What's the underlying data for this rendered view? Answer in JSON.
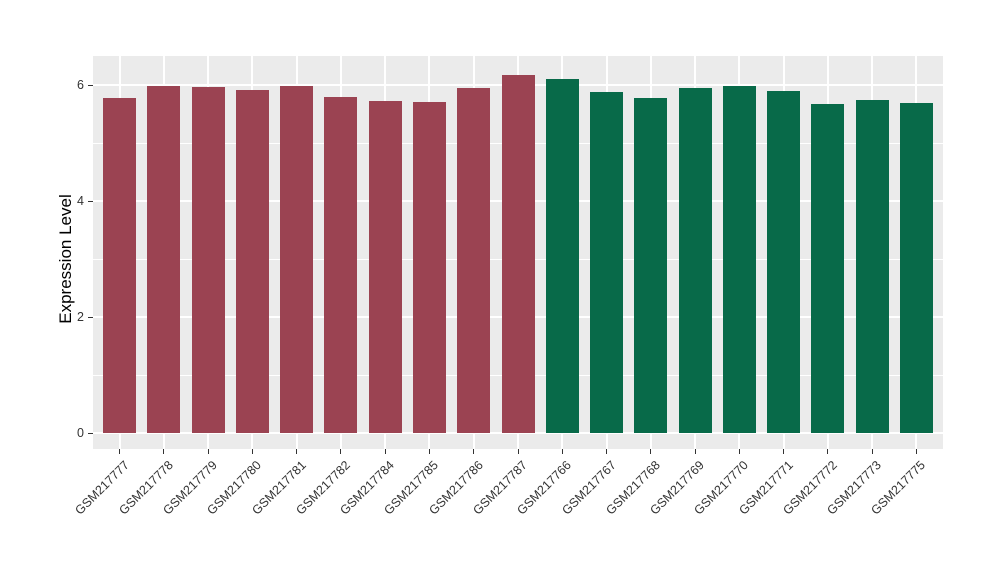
{
  "figure": {
    "background": "#ffffff",
    "title": ""
  },
  "style": {
    "panel_bg": "#EBEBEB",
    "grid_major_color": "#FFFFFF",
    "grid_minor_color": "#FFFFFF",
    "tick_text_color": "#333333",
    "axis_title_color": "#000000"
  },
  "chart_data": {
    "type": "bar",
    "title": "",
    "xlabel": "",
    "ylabel": "Expression Level",
    "ylim": [
      0,
      6.5
    ],
    "yticks": [
      0,
      2,
      4,
      6
    ],
    "grid": "white major gridlines at y=0,2,4,6 and minor at y=1,3,5 on gray panel; white vertical gridline at each category",
    "legend": "none",
    "x_tick_angle_deg": 45,
    "group_colors": {
      "group1": "#9B4352",
      "group2": "#086A49"
    },
    "bars": [
      {
        "label": "GSM217777",
        "value": 5.77,
        "group": "group1"
      },
      {
        "label": "GSM217778",
        "value": 5.98,
        "group": "group1"
      },
      {
        "label": "GSM217779",
        "value": 5.96,
        "group": "group1"
      },
      {
        "label": "GSM217780",
        "value": 5.91,
        "group": "group1"
      },
      {
        "label": "GSM217781",
        "value": 5.99,
        "group": "group1"
      },
      {
        "label": "GSM217782",
        "value": 5.8,
        "group": "group1"
      },
      {
        "label": "GSM217784",
        "value": 5.73,
        "group": "group1"
      },
      {
        "label": "GSM217785",
        "value": 5.71,
        "group": "group1"
      },
      {
        "label": "GSM217786",
        "value": 5.94,
        "group": "group1"
      },
      {
        "label": "GSM217787",
        "value": 6.17,
        "group": "group1"
      },
      {
        "label": "GSM217766",
        "value": 6.1,
        "group": "group2"
      },
      {
        "label": "GSM217767",
        "value": 5.88,
        "group": "group2"
      },
      {
        "label": "GSM217768",
        "value": 5.77,
        "group": "group2"
      },
      {
        "label": "GSM217769",
        "value": 5.94,
        "group": "group2"
      },
      {
        "label": "GSM217770",
        "value": 5.99,
        "group": "group2"
      },
      {
        "label": "GSM217771",
        "value": 5.9,
        "group": "group2"
      },
      {
        "label": "GSM217772",
        "value": 5.67,
        "group": "group2"
      },
      {
        "label": "GSM217773",
        "value": 5.74,
        "group": "group2"
      },
      {
        "label": "GSM217775",
        "value": 5.69,
        "group": "group2"
      }
    ]
  }
}
